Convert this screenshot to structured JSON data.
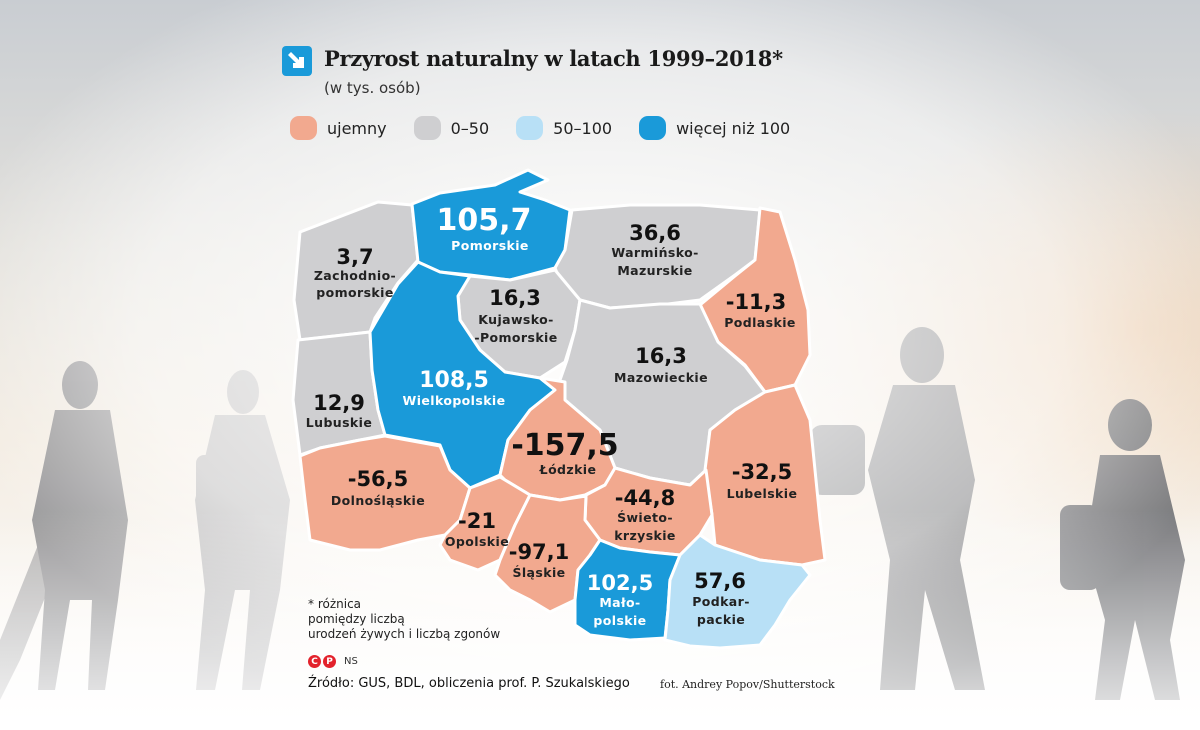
{
  "title": "Przyrost naturalny w latach 1999–2018*",
  "subtitle": "(w tys. osób)",
  "arrow_icon": "diagonal-arrow-icon",
  "colors": {
    "negative": "#f2a98f",
    "range_0_50": "#cfcfd1",
    "range_50_100": "#a9d9f3",
    "over_100": "#1a9ad9",
    "arrow": "#1a9ad9"
  },
  "legend": [
    {
      "label": "ujemny",
      "color": "#f2a98f"
    },
    {
      "label": "0–50",
      "color": "#cfcfd1"
    },
    {
      "label": "50–100",
      "color": "#b8e0f6"
    },
    {
      "label": "więcej niż 100",
      "color": "#1a9ad9"
    }
  ],
  "regions": {
    "pomorskie": {
      "value": "105,7",
      "name": [
        "Pomorskie"
      ],
      "color": "#1a9ad9"
    },
    "zachodniopomorskie": {
      "value": "3,7",
      "name": [
        "Zachodnio-",
        "pomorskie"
      ],
      "color": "#cfcfd1"
    },
    "warminsko_mazurskie": {
      "value": "36,6",
      "name": [
        "Warmińsko-",
        "Mazurskie"
      ],
      "color": "#cfcfd1"
    },
    "kujawsko_pomorskie": {
      "value": "16,3",
      "name": [
        "Kujawsko-",
        "-Pomorskie"
      ],
      "color": "#cfcfd1"
    },
    "podlaskie": {
      "value": "-11,3",
      "name": [
        "Podlaskie"
      ],
      "color": "#f2a98f"
    },
    "mazowieckie": {
      "value": "16,3",
      "name": [
        "Mazowieckie"
      ],
      "color": "#cfcfd1"
    },
    "wielkopolskie": {
      "value": "108,5",
      "name": [
        "Wielkopolskie"
      ],
      "color": "#1a9ad9"
    },
    "lubuskie": {
      "value": "12,9",
      "name": [
        "Lubuskie"
      ],
      "color": "#cfcfd1"
    },
    "lodzkie": {
      "value": "-157,5",
      "name": [
        "Łódzkie"
      ],
      "color": "#f2a98f"
    },
    "lubelskie": {
      "value": "-32,5",
      "name": [
        "Lubelskie"
      ],
      "color": "#f2a98f"
    },
    "dolnoslaskie": {
      "value": "-56,5",
      "name": [
        "Dolnośląskie"
      ],
      "color": "#f2a98f"
    },
    "swietokrzyskie": {
      "value": "-44,8",
      "name": [
        "Świeto-",
        "krzyskie"
      ],
      "color": "#f2a98f"
    },
    "opolskie": {
      "value": "-21",
      "name": [
        "Opolskie"
      ],
      "color": "#f2a98f"
    },
    "slaskie": {
      "value": "-97,1",
      "name": [
        "Śląskie"
      ],
      "color": "#f2a98f"
    },
    "malopolskie": {
      "value": "102,5",
      "name": [
        "Mało-",
        "polskie"
      ],
      "color": "#1a9ad9"
    },
    "podkarpackie": {
      "value": "57,6",
      "name": [
        "Podkar-",
        "packie"
      ],
      "color": "#b8e0f6"
    }
  },
  "footnote": [
    "* różnica",
    "pomiędzy liczbą",
    "urodzeń żywych i liczbą zgonów"
  ],
  "rights_icons": [
    "copyright-icon",
    "phonogram-icon"
  ],
  "rights_text": "NS",
  "source": "Źródło: GUS, BDL, obliczenia prof. P. Szukalskiego",
  "photo_credit": "fot. Andrey Popov/Shutterstock"
}
